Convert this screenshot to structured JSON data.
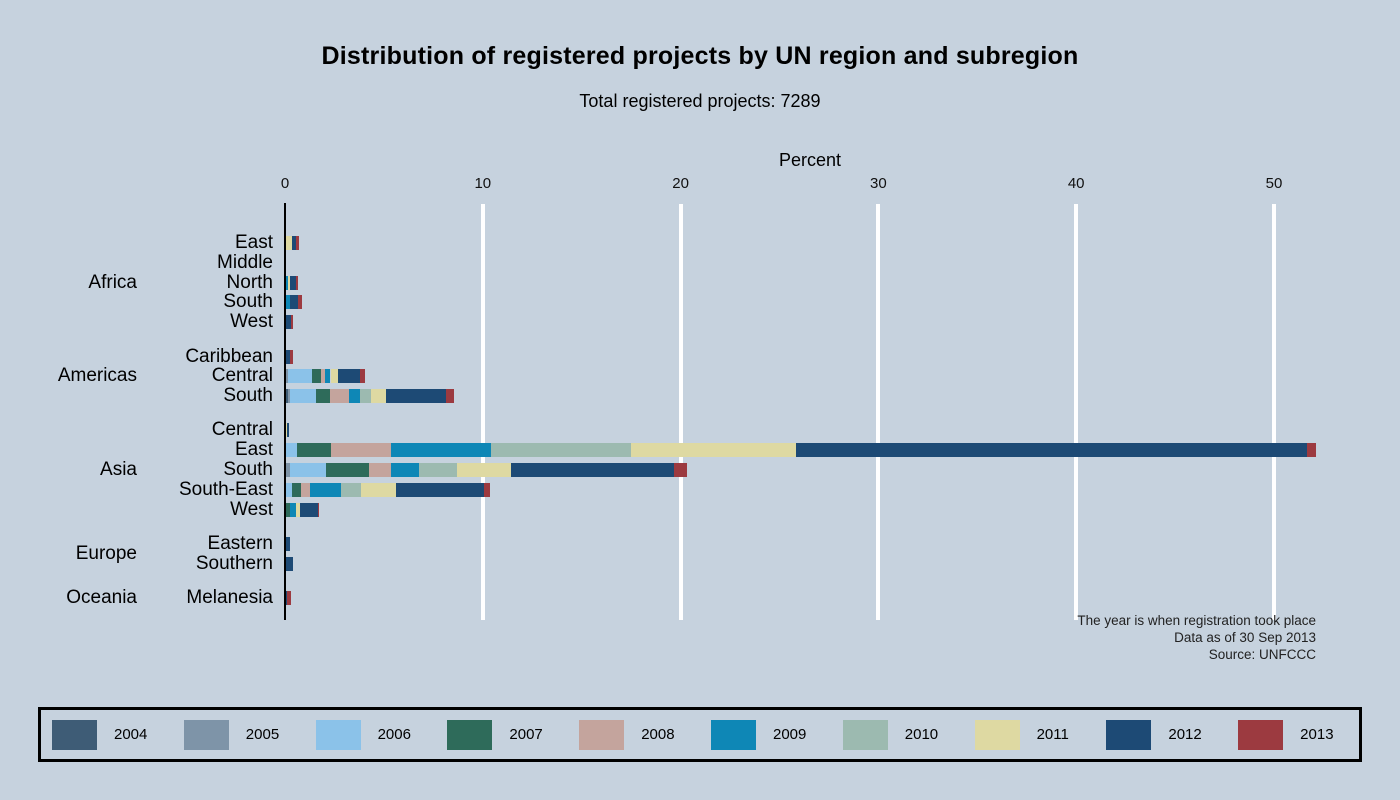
{
  "title": "Distribution of registered projects by UN region and subregion",
  "subtitle": "Total registered projects: 7289",
  "notes": {
    "line1": "The year is when registration took place",
    "line2": "Data as of 30 Sep 2013",
    "line3": "Source: UNFCCC"
  },
  "colors": {
    "background": "#c6d2de",
    "gridline": "#ffffff",
    "axis": "#000000",
    "years": {
      "2004": "#3e5c76",
      "2005": "#7e94a8",
      "2006": "#8bc2e9",
      "2007": "#2e6b5a",
      "2008": "#c4a49d",
      "2009": "#0e87b6",
      "2010": "#9cbab0",
      "2011": "#ded9a2",
      "2012": "#1d4a75",
      "2013": "#9c3a40"
    }
  },
  "chart_data": {
    "type": "bar",
    "orientation": "horizontal",
    "stacked": true,
    "title": "Distribution of registered projects by UN region and subregion",
    "subtitle": "Total registered projects: 7289",
    "xlabel": "Percent",
    "ylabel": "",
    "xlim": [
      0,
      55
    ],
    "xticks": [
      0,
      10,
      20,
      30,
      40,
      50
    ],
    "grid": true,
    "legend_position": "bottom",
    "legend_entries": [
      "2004",
      "2005",
      "2006",
      "2007",
      "2008",
      "2009",
      "2010",
      "2011",
      "2012",
      "2013"
    ],
    "unit": "percent of 7289 registered projects",
    "groups": [
      {
        "region": "Africa",
        "rows": [
          {
            "label": "East",
            "segments": [
              {
                "year": "2011",
                "value": 0.3
              },
              {
                "year": "2012",
                "value": 0.2
              },
              {
                "year": "2013",
                "value": 0.15
              }
            ]
          },
          {
            "label": "Middle",
            "segments": []
          },
          {
            "label": "North",
            "segments": [
              {
                "year": "2009",
                "value": 0.1
              },
              {
                "year": "2011",
                "value": 0.1
              },
              {
                "year": "2012",
                "value": 0.3
              },
              {
                "year": "2013",
                "value": 0.1
              }
            ]
          },
          {
            "label": "South",
            "segments": [
              {
                "year": "2009",
                "value": 0.2
              },
              {
                "year": "2012",
                "value": 0.4
              },
              {
                "year": "2013",
                "value": 0.2
              }
            ]
          },
          {
            "label": "West",
            "segments": [
              {
                "year": "2012",
                "value": 0.25
              },
              {
                "year": "2013",
                "value": 0.1
              }
            ]
          }
        ]
      },
      {
        "region": "Americas",
        "rows": [
          {
            "label": "Caribbean",
            "segments": [
              {
                "year": "2012",
                "value": 0.2
              },
              {
                "year": "2013",
                "value": 0.15
              }
            ]
          },
          {
            "label": "Central",
            "segments": [
              {
                "year": "2005",
                "value": 0.1
              },
              {
                "year": "2006",
                "value": 1.2
              },
              {
                "year": "2007",
                "value": 0.45
              },
              {
                "year": "2008",
                "value": 0.2
              },
              {
                "year": "2009",
                "value": 0.3
              },
              {
                "year": "2011",
                "value": 0.4
              },
              {
                "year": "2012",
                "value": 1.1
              },
              {
                "year": "2013",
                "value": 0.25
              }
            ]
          },
          {
            "label": "South",
            "segments": [
              {
                "year": "2004",
                "value": 0.1
              },
              {
                "year": "2005",
                "value": 0.1
              },
              {
                "year": "2006",
                "value": 1.3
              },
              {
                "year": "2007",
                "value": 0.7
              },
              {
                "year": "2008",
                "value": 1.0
              },
              {
                "year": "2009",
                "value": 0.55
              },
              {
                "year": "2010",
                "value": 0.55
              },
              {
                "year": "2011",
                "value": 0.75
              },
              {
                "year": "2012",
                "value": 3.05
              },
              {
                "year": "2013",
                "value": 0.4
              }
            ]
          }
        ]
      },
      {
        "region": "Asia",
        "rows": [
          {
            "label": "Central",
            "segments": [
              {
                "year": "2011",
                "value": 0.05
              },
              {
                "year": "2012",
                "value": 0.1
              }
            ]
          },
          {
            "label": "East",
            "segments": [
              {
                "year": "2006",
                "value": 0.55
              },
              {
                "year": "2007",
                "value": 1.75
              },
              {
                "year": "2008",
                "value": 3.0
              },
              {
                "year": "2009",
                "value": 5.05
              },
              {
                "year": "2010",
                "value": 7.1
              },
              {
                "year": "2011",
                "value": 8.35
              },
              {
                "year": "2012",
                "value": 25.8
              },
              {
                "year": "2013",
                "value": 0.45
              }
            ]
          },
          {
            "label": "South",
            "segments": [
              {
                "year": "2005",
                "value": 0.2
              },
              {
                "year": "2006",
                "value": 1.8
              },
              {
                "year": "2007",
                "value": 2.2
              },
              {
                "year": "2008",
                "value": 1.1
              },
              {
                "year": "2009",
                "value": 1.4
              },
              {
                "year": "2010",
                "value": 1.95
              },
              {
                "year": "2011",
                "value": 2.75
              },
              {
                "year": "2012",
                "value": 8.2
              },
              {
                "year": "2013",
                "value": 0.65
              }
            ]
          },
          {
            "label": "South-East",
            "segments": [
              {
                "year": "2006",
                "value": 0.3
              },
              {
                "year": "2007",
                "value": 0.45
              },
              {
                "year": "2008",
                "value": 0.45
              },
              {
                "year": "2009",
                "value": 1.6
              },
              {
                "year": "2010",
                "value": 1.0
              },
              {
                "year": "2011",
                "value": 1.75
              },
              {
                "year": "2012",
                "value": 4.45
              },
              {
                "year": "2013",
                "value": 0.3
              }
            ]
          },
          {
            "label": "West",
            "segments": [
              {
                "year": "2007",
                "value": 0.2
              },
              {
                "year": "2009",
                "value": 0.3
              },
              {
                "year": "2011",
                "value": 0.2
              },
              {
                "year": "2012",
                "value": 0.9
              },
              {
                "year": "2013",
                "value": 0.05
              }
            ]
          }
        ]
      },
      {
        "region": "Europe",
        "rows": [
          {
            "label": "Eastern",
            "segments": [
              {
                "year": "2012",
                "value": 0.2
              }
            ]
          },
          {
            "label": "Southern",
            "segments": [
              {
                "year": "2012",
                "value": 0.35
              }
            ]
          }
        ]
      },
      {
        "region": "Oceania",
        "rows": [
          {
            "label": "Melanesia",
            "segments": [
              {
                "year": "2012",
                "value": 0.05
              },
              {
                "year": "2013",
                "value": 0.2
              }
            ]
          }
        ]
      }
    ]
  }
}
